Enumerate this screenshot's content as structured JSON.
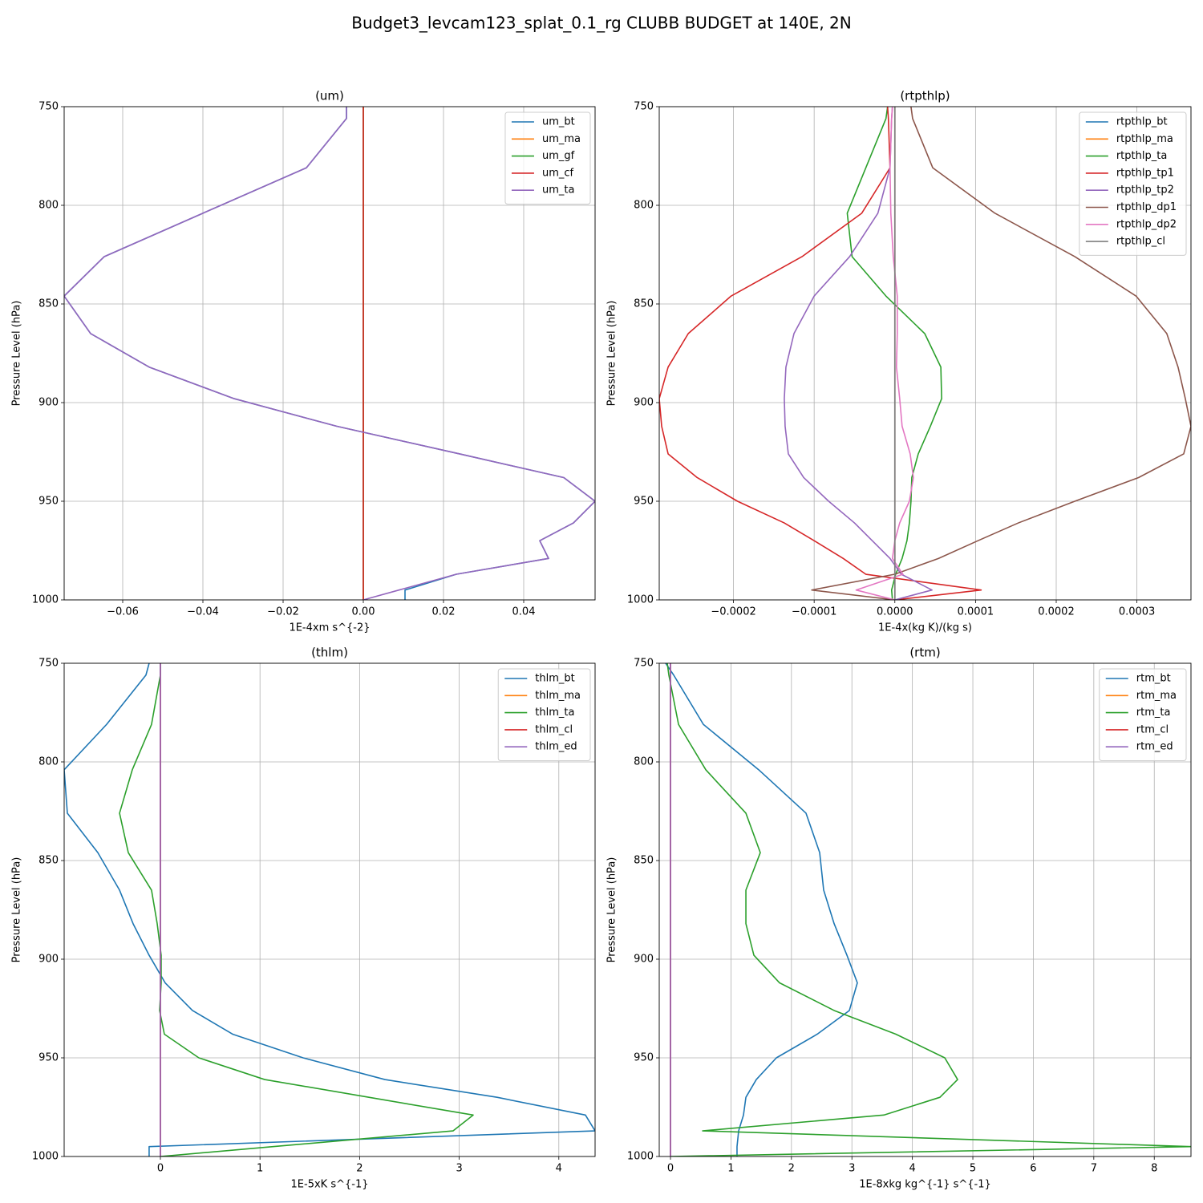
{
  "title": "Budget3_levcam123_splat_0.1_rg CLUBB BUDGET at 140E, 2N",
  "chart_data": [
    {
      "type": "line",
      "title": "(um)",
      "x_label": "1E-4xm s^{-2}",
      "y_label": "Pressure Level (hPa)",
      "y": [
        750,
        756,
        781,
        804,
        826,
        846,
        865,
        882,
        898,
        912,
        926,
        938,
        950,
        961,
        970,
        979,
        987,
        995,
        1000
      ],
      "xlim": [
        -0.0746,
        0.0578
      ],
      "ylim": [
        1000,
        750
      ],
      "xticks": [
        {
          "value": -0.06,
          "label": "−0.06"
        },
        {
          "value": -0.04,
          "label": "−0.04"
        },
        {
          "value": -0.02,
          "label": "−0.02"
        },
        {
          "value": 0,
          "label": "0.00"
        },
        {
          "value": 0.02,
          "label": "0.02"
        },
        {
          "value": 0.04,
          "label": "0.04"
        }
      ],
      "yticks": [
        750,
        800,
        850,
        900,
        950,
        1000
      ],
      "grid": true,
      "legend": "upper right",
      "series": [
        {
          "name": "um_bt",
          "color": "#1f77b4",
          "values": [
            -0.0042,
            -0.0042,
            -0.0142,
            -0.04,
            -0.0646,
            -0.0746,
            -0.068,
            -0.0534,
            -0.0322,
            -0.0066,
            0.024,
            0.05,
            0.0578,
            0.0524,
            0.044,
            0.0462,
            0.0232,
            0.0104,
            0.0104
          ]
        },
        {
          "name": "um_ma",
          "color": "#ff7f0e",
          "values": [
            0,
            0,
            0,
            0,
            0,
            0,
            0,
            0,
            0,
            0,
            0,
            0,
            0,
            0,
            0,
            0,
            0,
            0,
            0
          ]
        },
        {
          "name": "um_gf",
          "color": "#2ca02c",
          "values": [
            0,
            0,
            0,
            0,
            0,
            0,
            0,
            0,
            0,
            0,
            0,
            0,
            0,
            0,
            0,
            0,
            0,
            0,
            0
          ]
        },
        {
          "name": "um_cf",
          "color": "#d62728",
          "values": [
            0,
            0,
            0,
            0,
            0,
            0,
            0,
            0,
            0,
            0,
            0,
            0,
            0,
            0,
            0,
            0,
            0,
            0,
            0
          ]
        },
        {
          "name": "um_ta",
          "color": "#9467bd",
          "values": [
            -0.0042,
            -0.0042,
            -0.0142,
            -0.04,
            -0.0646,
            -0.0746,
            -0.068,
            -0.0534,
            -0.0322,
            -0.0066,
            0.024,
            0.05,
            0.0578,
            0.0524,
            0.044,
            0.0462,
            0.0232,
            0.0089,
            0
          ]
        }
      ]
    },
    {
      "type": "line",
      "title": "(rtpthlp)",
      "x_label": "1E-4x(kg K)/(kg s)",
      "y_label": "Pressure Level (hPa)",
      "y": [
        750,
        756,
        781,
        804,
        826,
        846,
        865,
        882,
        898,
        912,
        926,
        938,
        950,
        961,
        970,
        979,
        987,
        995,
        1000
      ],
      "xlim": [
        -0.000292,
        0.000367
      ],
      "ylim": [
        1000,
        750
      ],
      "xticks": [
        {
          "value": -0.0002,
          "label": "−0.0002"
        },
        {
          "value": -0.0001,
          "label": "−0.0001"
        },
        {
          "value": 0,
          "label": "0.0000"
        },
        {
          "value": 0.0001,
          "label": "0.0001"
        },
        {
          "value": 0.0002,
          "label": "0.0002"
        },
        {
          "value": 0.0003,
          "label": "0.0003"
        }
      ],
      "yticks": [
        750,
        800,
        850,
        900,
        950,
        1000
      ],
      "grid": true,
      "legend": "upper right",
      "series": [
        {
          "name": "rtpthlp_bt",
          "color": "#1f77b4",
          "values": [
            0,
            0,
            0,
            0,
            0,
            0,
            0,
            0,
            0,
            0,
            0,
            0,
            0,
            0,
            0,
            0,
            0,
            0,
            0
          ]
        },
        {
          "name": "rtpthlp_ma",
          "color": "#ff7f0e",
          "values": [
            0,
            0,
            0,
            0,
            0,
            0,
            0,
            0,
            0,
            0,
            0,
            0,
            0,
            0,
            0,
            0,
            0,
            0,
            0
          ]
        },
        {
          "name": "rtpthlp_ta",
          "color": "#2ca02c",
          "values": [
            -9e-06,
            -1.1e-05,
            -3.6e-05,
            -5.9e-05,
            -5.3e-05,
            -1.1e-05,
            3.7e-05,
            5.7e-05,
            5.8e-05,
            4.4e-05,
            2.9e-05,
            2.1e-05,
            2e-05,
            1.8e-05,
            1.5e-05,
            9e-06,
            1e-06,
            -4e-06,
            -3e-06
          ]
        },
        {
          "name": "rtpthlp_tp1",
          "color": "#d62728",
          "values": [
            -9e-06,
            -8e-06,
            -6e-06,
            -4.1e-05,
            -0.000115,
            -0.000203,
            -0.000256,
            -0.000281,
            -0.000292,
            -0.000289,
            -0.000281,
            -0.000245,
            -0.000195,
            -0.000137,
            -0.0001,
            -6.4e-05,
            -3.6e-05,
            0.000107,
            0
          ]
        },
        {
          "name": "rtpthlp_tp2",
          "color": "#9467bd",
          "values": [
            -3e-06,
            -4e-06,
            -6e-06,
            -2.1e-05,
            -5.6e-05,
            -0.0001,
            -0.000125,
            -0.000135,
            -0.000137,
            -0.000136,
            -0.000132,
            -0.000113,
            -8.2e-05,
            -5e-05,
            -2.8e-05,
            -6e-06,
            8e-06,
            4.6e-05,
            0
          ]
        },
        {
          "name": "rtpthlp_dp1",
          "color": "#8c564b",
          "values": [
            2e-05,
            2.2e-05,
            4.7e-05,
            0.000124,
            0.000223,
            0.000299,
            0.000337,
            0.000351,
            0.00036,
            0.000367,
            0.000358,
            0.000302,
            0.000223,
            0.000153,
            0.000103,
            5.4e-05,
            0,
            -0.000103,
            0
          ]
        },
        {
          "name": "rtpthlp_dp2",
          "color": "#e377c2",
          "values": [
            -3e-06,
            -4e-06,
            -6e-06,
            -5e-06,
            -2e-06,
            3e-06,
            3e-06,
            2e-06,
            6e-06,
            9e-06,
            1.9e-05,
            2.3e-05,
            1.8e-05,
            6e-06,
            0,
            -3e-06,
            1e-05,
            -4.8e-05,
            0
          ]
        },
        {
          "name": "rtpthlp_cl",
          "color": "#7f7f7f",
          "values": [
            0,
            0,
            0,
            0,
            0,
            0,
            0,
            0,
            0,
            0,
            0,
            0,
            0,
            0,
            0,
            0,
            0,
            0,
            0
          ]
        }
      ]
    },
    {
      "type": "line",
      "title": "(thlm)",
      "x_label": "1E-5xK s^{-1}",
      "y_label": "Pressure Level (hPa)",
      "y": [
        750,
        756,
        781,
        804,
        826,
        846,
        865,
        882,
        898,
        912,
        926,
        938,
        950,
        961,
        970,
        979,
        987,
        995,
        1000
      ],
      "xlim": [
        -0.966,
        4.364
      ],
      "ylim": [
        1000,
        750
      ],
      "xticks": [
        0,
        1,
        2,
        3,
        4
      ],
      "yticks": [
        750,
        800,
        850,
        900,
        950,
        1000
      ],
      "grid": true,
      "legend": "upper right",
      "series": [
        {
          "name": "thlm_bt",
          "color": "#1f77b4",
          "values": [
            -0.113,
            -0.145,
            -0.54,
            -0.966,
            -0.934,
            -0.628,
            -0.41,
            -0.274,
            -0.113,
            0.048,
            0.322,
            0.725,
            1.433,
            2.254,
            3.38,
            4.267,
            4.364,
            -0.113,
            -0.113
          ]
        },
        {
          "name": "thlm_ma",
          "color": "#ff7f0e",
          "values": [
            0,
            0,
            0,
            0,
            0,
            0,
            0,
            0,
            0,
            0,
            0,
            0,
            0,
            0,
            0,
            0,
            0,
            0,
            0
          ]
        },
        {
          "name": "thlm_ta",
          "color": "#2ca02c",
          "values": [
            0,
            0,
            -0.089,
            -0.282,
            -0.41,
            -0.322,
            -0.089,
            -0.032,
            0.008,
            0.008,
            -0.008,
            0.04,
            0.386,
            1.047,
            2.093,
            3.14,
            2.939,
            1.13,
            0
          ]
        },
        {
          "name": "thlm_cl",
          "color": "#d62728",
          "values": [
            0,
            0,
            0,
            0,
            0,
            0,
            0,
            0,
            0,
            0,
            0,
            0,
            0,
            0,
            0,
            0,
            0,
            0,
            0
          ]
        },
        {
          "name": "thlm_ed",
          "color": "#9467bd",
          "values": [
            0,
            0,
            0,
            0,
            0,
            0,
            0,
            0,
            0,
            0,
            0,
            0,
            0,
            0,
            0,
            0,
            0,
            0,
            0
          ]
        }
      ]
    },
    {
      "type": "line",
      "title": "(rtm)",
      "x_label": "1E-8xkg kg^{-1} s^{-1}",
      "y_label": "Pressure Level (hPa)",
      "y": [
        750,
        756,
        781,
        804,
        826,
        846,
        865,
        882,
        898,
        912,
        926,
        938,
        950,
        961,
        970,
        979,
        987,
        995,
        1000
      ],
      "xlim": [
        -0.186,
        8.607
      ],
      "ylim": [
        1000,
        750
      ],
      "xticks": [
        0,
        1,
        2,
        3,
        4,
        5,
        6,
        7,
        8
      ],
      "yticks": [
        750,
        800,
        850,
        900,
        950,
        1000
      ],
      "grid": true,
      "legend": "upper right",
      "series": [
        {
          "name": "rtm_bt",
          "color": "#1f77b4",
          "values": [
            -0.08,
            0.053,
            0.544,
            1.459,
            2.241,
            2.467,
            2.533,
            2.706,
            2.918,
            3.09,
            2.958,
            2.427,
            1.751,
            1.419,
            1.247,
            1.207,
            1.127,
            1.1,
            1.1
          ]
        },
        {
          "name": "rtm_ma",
          "color": "#ff7f0e",
          "values": [
            0,
            0,
            0,
            0,
            0,
            0,
            0,
            0,
            0,
            0,
            0,
            0,
            0,
            0,
            0,
            0,
            0,
            0,
            0
          ]
        },
        {
          "name": "rtm_ta",
          "color": "#2ca02c",
          "values": [
            -0.053,
            -0.027,
            0.133,
            0.584,
            1.247,
            1.485,
            1.247,
            1.247,
            1.379,
            1.804,
            2.706,
            3.727,
            4.536,
            4.748,
            4.456,
            3.528,
            0.531,
            8.607,
            0
          ]
        },
        {
          "name": "rtm_cl",
          "color": "#d62728",
          "values": [
            0,
            0,
            0,
            0,
            0,
            0,
            0,
            0,
            0,
            0,
            0,
            0,
            0,
            0,
            0,
            0,
            0,
            0,
            0
          ]
        },
        {
          "name": "rtm_ed",
          "color": "#9467bd",
          "values": [
            0,
            0,
            0,
            0,
            0,
            0,
            0,
            0,
            0,
            0,
            0,
            0,
            0,
            0,
            0,
            0,
            0,
            0,
            0
          ]
        }
      ]
    }
  ]
}
